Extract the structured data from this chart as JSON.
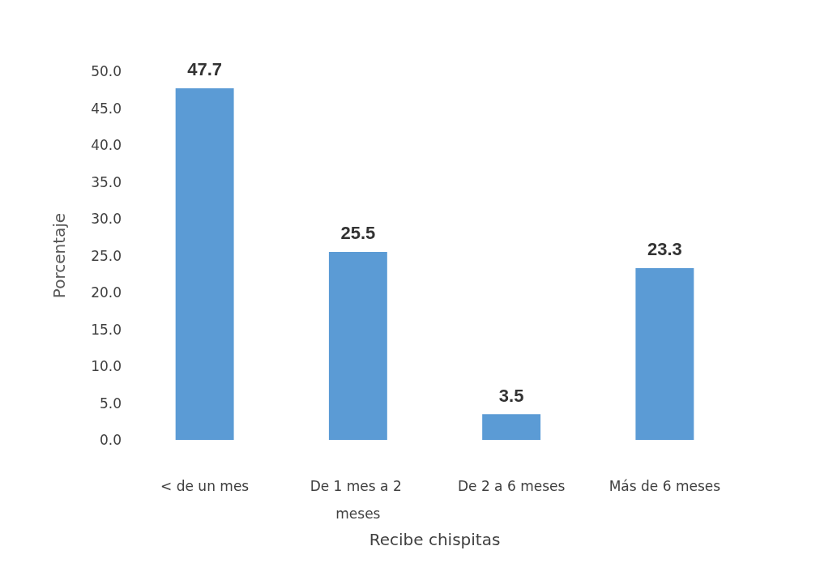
{
  "chart_data": {
    "type": "bar",
    "xlabel": "Recibe chispitas",
    "ylabel": "Porcentaje",
    "categories": [
      "< de un mes",
      "De 1 mes a 2 meses",
      "De 2 a 6 meses",
      "Más de 6 meses"
    ],
    "values": [
      47.7,
      25.5,
      3.5,
      23.3
    ],
    "color": "#5b9bd5",
    "ylim": [
      0,
      50
    ],
    "yticks": [
      {
        "value": 0,
        "label": "0.0"
      },
      {
        "value": 5,
        "label": "5.0"
      },
      {
        "value": 10,
        "label": "10.0"
      },
      {
        "value": 15,
        "label": "15.0"
      },
      {
        "value": 20,
        "label": "20.0"
      },
      {
        "value": 25,
        "label": "25.0"
      },
      {
        "value": 30,
        "label": "30.0"
      },
      {
        "value": 35,
        "label": "35.0"
      },
      {
        "value": 40,
        "label": "40.0"
      },
      {
        "value": 45,
        "label": "45.0"
      },
      {
        "value": 50,
        "label": "50.0"
      }
    ],
    "data_labels": true
  }
}
